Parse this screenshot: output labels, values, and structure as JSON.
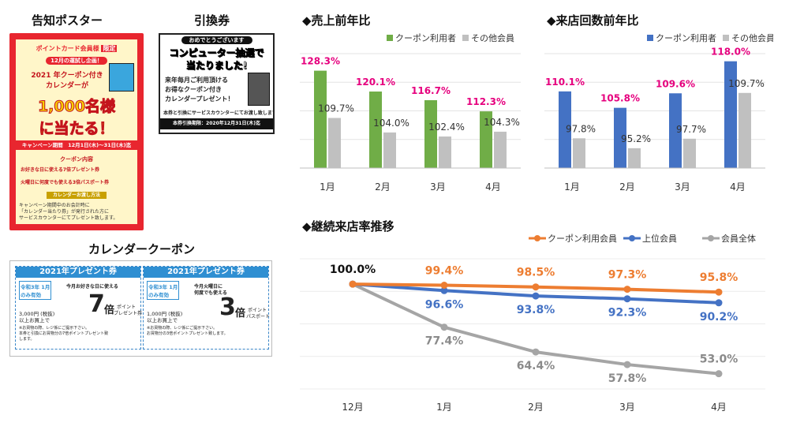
{
  "left": {
    "poster_title": "告知ポスター",
    "ticket_title": "引換券",
    "coupon_title": "カレンダークーポン",
    "poster": {
      "badge": "ポイントカード会員様",
      "badge_tag": "限定",
      "sub": "12月の運試し企画！",
      "line1": "2021 年クーポン付き",
      "line2": "カレンダーが",
      "big": "1,000名様",
      "big2": "に当たる！",
      "campaign": "キャンペーン期間　12月1日(木)～31日(木)迄",
      "coupon_head": "クーポン内容",
      "item1": "お好きな日に使える7倍プレゼント券",
      "item2": "火曜日に何度でも使える3倍パスポート券",
      "howto": "カレンダーお渡し方法",
      "note1": "キャンペーン期間中のお会計時に",
      "note2": "「カレンダー当たり券」が発行された方に",
      "note3": "サービスカウンターにてプレゼント致します。"
    },
    "ticket": {
      "top": "おめでとうございます",
      "win1": "コンピューター抽選で",
      "win2": "当たりました!",
      "l1": "来年毎月ご利用頂ける",
      "l2": "お得なクーポン付き",
      "l3": "カレンダープレゼント！",
      "note": "本券と引換にサービスカウンターにてお渡し致します。",
      "expiry": "本券引換期限：2020年12月31日(木)迄"
    },
    "coupons": [
      {
        "head": "2021年プレゼント券",
        "date": "令和3年",
        "month": "1月",
        "only": "のみ有効",
        "desc1": "今月お好きな日に使える",
        "mult": "7",
        "unit": "倍",
        "kind1": "ポイント",
        "kind2": "プレゼント券",
        "cond1": "3,000円 (税抜)",
        "cond2": "以上お買上で",
        "n1": "※お買物の際、レジ係にご提示下さい。",
        "n2": "本券と引換にお買物分の7倍ポイントプレゼント致",
        "n3": "します。"
      },
      {
        "head": "2021年プレゼント券",
        "date": "令和3年",
        "month": "1月",
        "only": "のみ有効",
        "desc1": "今月火曜日に",
        "desc2": "何度でも使える",
        "mult": "3",
        "unit": "倍",
        "kind1": "ポイント",
        "kind2": "パスポート",
        "cond1": "1,000円 (税抜)",
        "cond2": "以上お買上で",
        "n1": "※お買物の際、レジ係にご提示下さい。",
        "n2": "お買物分の3倍ポイントプレゼント致します。",
        "n3": ""
      }
    ]
  },
  "colors": {
    "green": "#70ad47",
    "gray": "#c0c0c0",
    "blue": "#4472c4",
    "orange": "#ed7d31",
    "linegray": "#a5a5a5",
    "pink": "#e6007e"
  },
  "chart_data": [
    {
      "type": "bar",
      "title": "◆売上前年比",
      "categories": [
        "1月",
        "2月",
        "3月",
        "4月"
      ],
      "series": [
        {
          "name": "クーポン利用者",
          "values": [
            128.3,
            120.1,
            116.7,
            112.3
          ],
          "labels": [
            "128.3%",
            "120.1%",
            "116.7%",
            "112.3%"
          ]
        },
        {
          "name": "その他会員",
          "values": [
            109.7,
            104.0,
            102.4,
            104.3
          ],
          "labels": [
            "109.7%",
            "104.0%",
            "102.4%",
            "104.3%"
          ]
        }
      ],
      "ylim": [
        90,
        135
      ],
      "legend": "top-right"
    },
    {
      "type": "bar",
      "title": "◆来店回数前年比",
      "categories": [
        "1月",
        "2月",
        "3月",
        "4月"
      ],
      "series": [
        {
          "name": "クーポン利用者",
          "values": [
            110.1,
            105.8,
            109.6,
            118.0
          ],
          "labels": [
            "110.1%",
            "105.8%",
            "109.6%",
            "118.0%"
          ]
        },
        {
          "name": "その他会員",
          "values": [
            97.8,
            95.2,
            97.7,
            109.7
          ],
          "labels": [
            "97.8%",
            "95.2%",
            "97.7%",
            "109.7%"
          ]
        }
      ],
      "ylim": [
        90,
        120
      ],
      "legend": "top-right"
    },
    {
      "type": "line",
      "title": "◆継続来店率推移",
      "categories": [
        "12月",
        "1月",
        "2月",
        "3月",
        "4月"
      ],
      "series": [
        {
          "name": "クーポン利用会員",
          "values": [
            100.0,
            99.4,
            98.5,
            97.3,
            95.8
          ],
          "labels": [
            "100.0%",
            "99.4%",
            "98.5%",
            "97.3%",
            "95.8%"
          ]
        },
        {
          "name": "上位会員",
          "values": [
            100.0,
            96.6,
            93.8,
            92.3,
            90.2
          ],
          "labels": [
            "",
            "96.6%",
            "93.8%",
            "92.3%",
            "90.2%"
          ]
        },
        {
          "name": "会員全体",
          "values": [
            100.0,
            77.4,
            64.4,
            57.8,
            53.0
          ],
          "labels": [
            "",
            "77.4%",
            "64.4%",
            "57.8%",
            "53.0%"
          ]
        }
      ],
      "ylim": [
        45,
        105
      ],
      "legend": "top-right"
    }
  ]
}
